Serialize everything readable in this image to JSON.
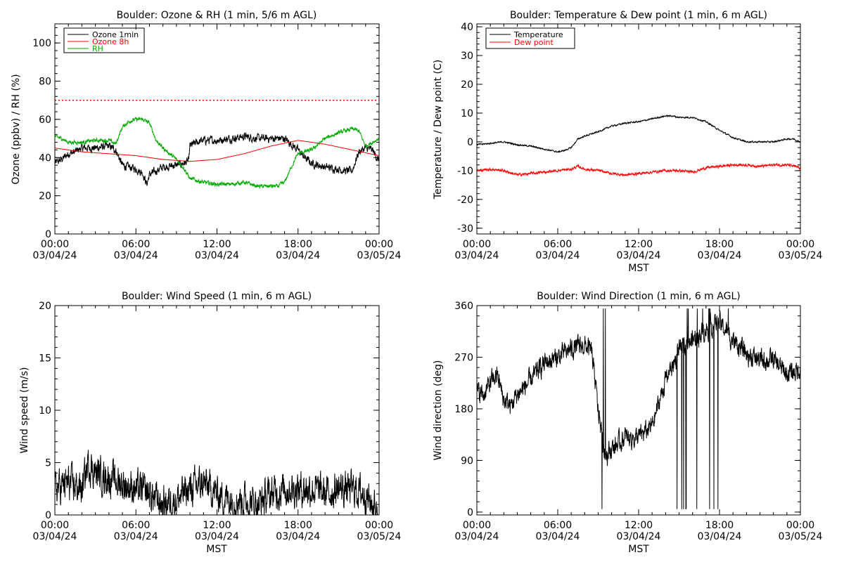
{
  "figure": {
    "panels": [
      {
        "id": "ozone_rh",
        "title": "Boulder: Ozone & RH (1 min, 5/6 m AGL)",
        "ylabel": "Ozone (ppbv) / RH (%)",
        "xlabel": ""
      },
      {
        "id": "temp_dew",
        "title": "Boulder: Temperature & Dew point (1 min, 6 m AGL)",
        "ylabel": "Temperature / Dew point (C)",
        "xlabel": "MST"
      },
      {
        "id": "wind_speed",
        "title": "Boulder: Wind Speed (1 min, 6 m AGL)",
        "ylabel": "Wind speed (m/s)",
        "xlabel": "MST"
      },
      {
        "id": "wind_dir",
        "title": "Boulder: Wind Direction (1 min, 6 m AGL)",
        "ylabel": "Wind direction (deg)",
        "xlabel": "MST"
      }
    ]
  },
  "chart_data": [
    {
      "type": "line",
      "title": "Boulder: Ozone & RH (1 min, 5/6 m AGL)",
      "xlabel": "",
      "ylabel": "Ozone (ppbv) / RH (%)",
      "xlim": [
        0,
        24
      ],
      "ylim": [
        0,
        110
      ],
      "x_ticks": [
        0,
        6,
        12,
        18,
        24
      ],
      "x_tick_labels": [
        [
          "00:00",
          "03/04/24"
        ],
        [
          "06:00",
          "03/04/24"
        ],
        [
          "12:00",
          "03/04/24"
        ],
        [
          "18:00",
          "03/04/24"
        ],
        [
          "00:00",
          "03/05/24"
        ]
      ],
      "y_ticks": [
        0,
        20,
        40,
        60,
        80,
        100
      ],
      "legend": "top-left",
      "reference_line": {
        "y": 70,
        "color": "#ff0000",
        "style": "dotted"
      },
      "series": [
        {
          "name": "Ozone 1min",
          "color": "#000000",
          "noise": 1.6,
          "x": [
            0,
            0.5,
            1,
            1.5,
            2,
            3,
            4,
            4.5,
            5,
            5.5,
            6,
            6.5,
            6.8,
            7,
            7.5,
            8,
            9,
            9.5,
            9.9,
            10,
            10.5,
            11,
            12,
            13,
            14,
            15,
            16,
            17,
            17.5,
            18,
            18.5,
            19,
            20,
            21,
            21.5,
            22,
            22.5,
            23,
            23.5,
            24
          ],
          "y": [
            37,
            39,
            42,
            43,
            45,
            45,
            46,
            44,
            36,
            35,
            34,
            32,
            26,
            31,
            33,
            35,
            36,
            37,
            38,
            46,
            48,
            49,
            49,
            50,
            51,
            50,
            50,
            50,
            47,
            44,
            40,
            37,
            35,
            34,
            33,
            33,
            43,
            45,
            44,
            38
          ]
        },
        {
          "name": "Ozone 8h",
          "color": "#ff0000",
          "noise": 0,
          "x": [
            0,
            2,
            4,
            6,
            8,
            10,
            12,
            14,
            16,
            18,
            20,
            22,
            24
          ],
          "y": [
            45,
            43,
            42,
            41,
            39,
            38,
            39,
            42,
            46,
            49,
            47,
            44,
            41
          ]
        },
        {
          "name": "RH",
          "color": "#00aa00",
          "noise": 0.8,
          "x": [
            0,
            0.5,
            1,
            2,
            3,
            4,
            4.5,
            5,
            5.5,
            6,
            6.5,
            7,
            7.5,
            8,
            8.5,
            9,
            9.5,
            10,
            11,
            12,
            13,
            14,
            15,
            16,
            16.5,
            17,
            17.5,
            18,
            19,
            20,
            21,
            22,
            22.5,
            23,
            24
          ],
          "y": [
            51,
            50,
            48,
            48,
            49,
            49,
            47,
            56,
            59,
            60,
            60,
            58,
            49,
            45,
            42,
            39,
            35,
            29,
            27,
            26,
            26,
            27,
            25,
            25,
            25,
            27,
            35,
            42,
            44,
            50,
            53,
            55,
            54,
            46,
            50
          ]
        }
      ]
    },
    {
      "type": "line",
      "title": "Boulder: Temperature & Dew point (1 min, 6 m AGL)",
      "xlabel": "MST",
      "ylabel": "Temperature / Dew point (C)",
      "xlim": [
        0,
        24
      ],
      "ylim": [
        -32,
        41
      ],
      "x_ticks": [
        0,
        6,
        12,
        18,
        24
      ],
      "x_tick_labels": [
        [
          "00:00",
          "03/04/24"
        ],
        [
          "06:00",
          "03/04/24"
        ],
        [
          "12:00",
          "03/04/24"
        ],
        [
          "18:00",
          "03/04/24"
        ],
        [
          "00:00",
          "03/05/24"
        ]
      ],
      "y_ticks": [
        -30,
        -20,
        -10,
        0,
        10,
        20,
        30,
        40
      ],
      "legend": "top-left",
      "series": [
        {
          "name": "Temperature",
          "color": "#000000",
          "noise": 0.2,
          "x": [
            0,
            1,
            2,
            3,
            4,
            5,
            6,
            6.5,
            7,
            7.5,
            8,
            9,
            10,
            11,
            12,
            13,
            14,
            14.5,
            15,
            16,
            17,
            18,
            19,
            20,
            21,
            22,
            23,
            23.5,
            24
          ],
          "y": [
            -1,
            -0.5,
            0,
            -1,
            -1.5,
            -2.5,
            -3.5,
            -3,
            -2,
            1,
            2,
            3.5,
            5.5,
            6.5,
            7,
            8,
            9,
            9,
            8.5,
            8.5,
            7,
            4,
            1.5,
            0,
            0,
            0,
            1,
            1,
            0
          ]
        },
        {
          "name": "Dew point",
          "color": "#ff0000",
          "noise": 0.35,
          "x": [
            0,
            1,
            2,
            3,
            4,
            5,
            6,
            7,
            7.5,
            8,
            9,
            10,
            11,
            12,
            13,
            14,
            15,
            16,
            17,
            18,
            19,
            20,
            21,
            22,
            23,
            24
          ],
          "y": [
            -10,
            -9.5,
            -10,
            -11.5,
            -11,
            -10.5,
            -10,
            -9.5,
            -8.5,
            -9.5,
            -10,
            -11,
            -11.5,
            -11,
            -10.5,
            -10,
            -10,
            -10.5,
            -9,
            -8.5,
            -8,
            -8,
            -8.5,
            -8,
            -8,
            -9
          ]
        }
      ]
    },
    {
      "type": "line",
      "title": "Boulder: Wind Speed (1 min, 6 m AGL)",
      "xlabel": "MST",
      "ylabel": "Wind speed (m/s)",
      "xlim": [
        0,
        24
      ],
      "ylim": [
        0,
        20
      ],
      "x_ticks": [
        0,
        6,
        12,
        18,
        24
      ],
      "x_tick_labels": [
        [
          "00:00",
          "03/04/24"
        ],
        [
          "06:00",
          "03/04/24"
        ],
        [
          "12:00",
          "03/04/24"
        ],
        [
          "18:00",
          "03/04/24"
        ],
        [
          "00:00",
          "03/05/24"
        ]
      ],
      "y_ticks": [
        0,
        5,
        10,
        15,
        20
      ],
      "series": [
        {
          "name": "",
          "color": "#000000",
          "noise": 1.3,
          "x": [
            0,
            1,
            2,
            2.5,
            3,
            4,
            5,
            6,
            7,
            8,
            9,
            10,
            11,
            12,
            13,
            14,
            15,
            16,
            17,
            18,
            19,
            20,
            21,
            22,
            23,
            23.5,
            24
          ],
          "y": [
            2.5,
            3,
            2.5,
            5,
            4,
            3.5,
            3,
            2.5,
            2,
            1,
            1.5,
            2.5,
            3,
            2,
            1.5,
            1.5,
            1,
            2,
            2.5,
            2.5,
            2.5,
            2,
            2.5,
            2.5,
            2,
            1,
            0.5
          ]
        }
      ]
    },
    {
      "type": "line",
      "title": "Boulder: Wind Direction (1 min, 6 m AGL)",
      "xlabel": "MST",
      "ylabel": "Wind direction (deg)",
      "xlim": [
        0,
        24
      ],
      "ylim": [
        -5,
        360
      ],
      "x_ticks": [
        0,
        6,
        12,
        18,
        24
      ],
      "x_tick_labels": [
        [
          "00:00",
          "03/04/24"
        ],
        [
          "06:00",
          "03/04/24"
        ],
        [
          "12:00",
          "03/04/24"
        ],
        [
          "18:00",
          "03/04/24"
        ],
        [
          "00:00",
          "03/05/24"
        ]
      ],
      "y_ticks": [
        0,
        90,
        180,
        270,
        360
      ],
      "series": [
        {
          "name": "",
          "color": "#000000",
          "noise": 14,
          "x": [
            0,
            0.5,
            1,
            1.5,
            2,
            2.5,
            3,
            4,
            5,
            6,
            7,
            8,
            8.5,
            9,
            9.5,
            10,
            11,
            12,
            13,
            14,
            15,
            16,
            17,
            18,
            19,
            20,
            21,
            22,
            23,
            24
          ],
          "y": [
            210,
            205,
            225,
            240,
            195,
            185,
            205,
            230,
            260,
            270,
            285,
            290,
            280,
            180,
            100,
            110,
            130,
            130,
            150,
            230,
            280,
            300,
            320,
            330,
            300,
            275,
            265,
            265,
            240,
            250
          ]
        }
      ]
    }
  ]
}
